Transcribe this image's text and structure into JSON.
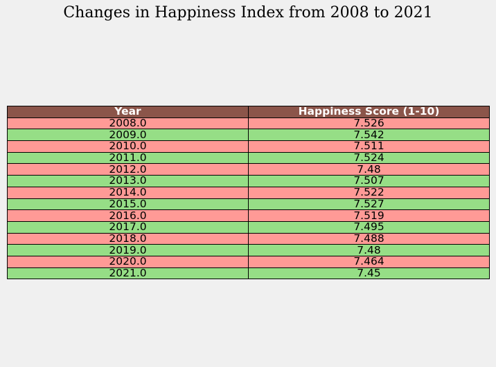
{
  "chart_data": {
    "type": "table",
    "title": "Changes in Happiness Index from 2008 to 2021",
    "columns": [
      "Year",
      "Happiness Score (1-10)"
    ],
    "rows": [
      [
        "2008.0",
        "7.526"
      ],
      [
        "2009.0",
        "7.542"
      ],
      [
        "2010.0",
        "7.511"
      ],
      [
        "2011.0",
        "7.524"
      ],
      [
        "2012.0",
        "7.48"
      ],
      [
        "2013.0",
        "7.507"
      ],
      [
        "2014.0",
        "7.522"
      ],
      [
        "2015.0",
        "7.527"
      ],
      [
        "2016.0",
        "7.519"
      ],
      [
        "2017.0",
        "7.495"
      ],
      [
        "2018.0",
        "7.488"
      ],
      [
        "2019.0",
        "7.48"
      ],
      [
        "2020.0",
        "7.464"
      ],
      [
        "2021.0",
        "7.45"
      ]
    ]
  },
  "colors": {
    "header_background": "#8b554a",
    "header_text": "#ffffff",
    "odd_row": "#ff9a96",
    "even_row": "#96de86",
    "page_background": "#f0f0f0"
  }
}
